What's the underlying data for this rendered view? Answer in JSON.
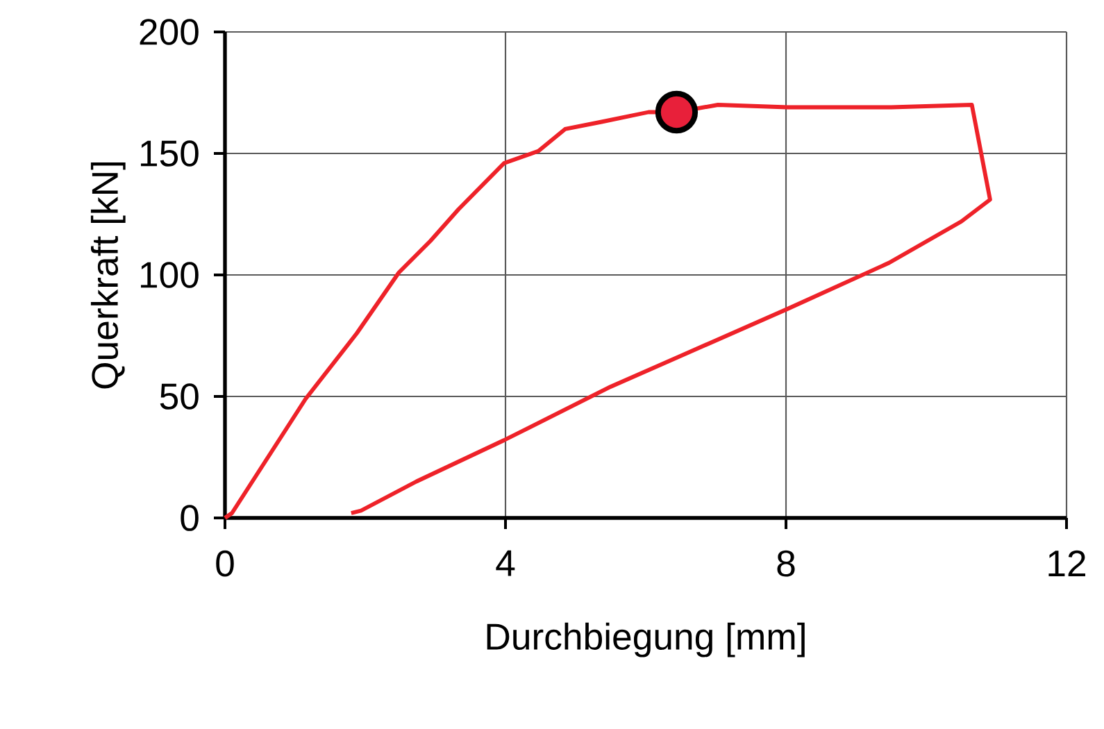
{
  "chart_data": {
    "type": "line",
    "xlabel": "Durchbiegung [mm]",
    "ylabel": "Querkraft [kN]",
    "xlim": [
      0,
      12
    ],
    "ylim": [
      0,
      200
    ],
    "xticks": [
      0,
      4,
      8,
      12
    ],
    "yticks": [
      0,
      50,
      100,
      150,
      200
    ],
    "grid": true,
    "series": [
      {
        "color": "#ee2229",
        "x": [
          0,
          0.1,
          1.15,
          1.88,
          2.48,
          2.93,
          3.33,
          3.98,
          4.47,
          4.85,
          5.37,
          6.04,
          6.44,
          7.03,
          8.02,
          9.5,
          10.65,
          10.91,
          10.5,
          9.47,
          8.02,
          5.5,
          3.98,
          2.73,
          1.94,
          1.8
        ],
        "values": [
          0,
          2,
          49,
          76,
          101,
          114,
          127,
          146,
          151,
          160,
          163,
          167,
          167,
          170,
          169,
          169,
          170,
          131,
          122,
          105,
          86,
          54,
          32,
          15,
          3,
          2
        ],
        "marker": "none"
      },
      {
        "type": "scatter",
        "color": "#e8203a",
        "x": [
          6.44
        ],
        "values": [
          167
        ],
        "marker": "circle"
      }
    ]
  }
}
